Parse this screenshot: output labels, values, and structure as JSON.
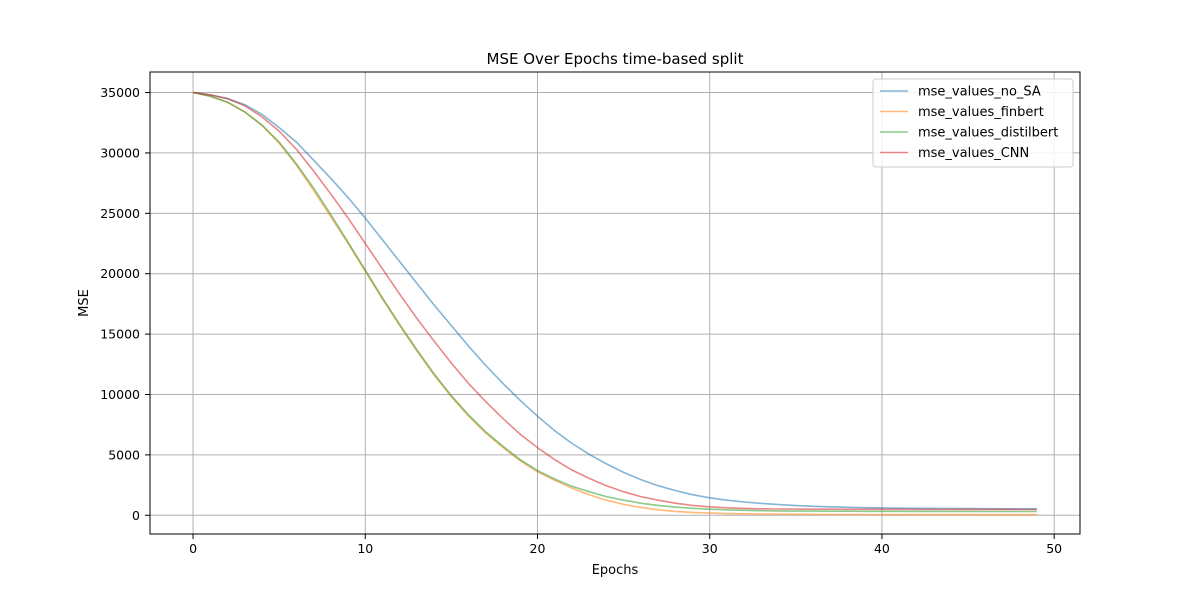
{
  "chart_data": {
    "type": "line",
    "title": "MSE Over Epochs time-based split",
    "xlabel": "Epochs",
    "ylabel": "MSE",
    "xlim": [
      -2.5,
      51.5
    ],
    "ylim": [
      -1550,
      36700
    ],
    "xticks": [
      0,
      10,
      20,
      30,
      40,
      50
    ],
    "yticks": [
      0,
      5000,
      10000,
      15000,
      20000,
      25000,
      30000,
      35000
    ],
    "grid": true,
    "legend_position": "top-right",
    "x": [
      0,
      1,
      2,
      3,
      4,
      5,
      6,
      7,
      8,
      9,
      10,
      11,
      12,
      13,
      14,
      15,
      16,
      17,
      18,
      19,
      20,
      21,
      22,
      23,
      24,
      25,
      26,
      27,
      28,
      29,
      30,
      31,
      32,
      33,
      34,
      35,
      36,
      37,
      38,
      39,
      40,
      41,
      42,
      43,
      44,
      45,
      46,
      47,
      48,
      49
    ],
    "series": [
      {
        "name": "mse_values_no_SA",
        "color": "#1f77b4",
        "values": [
          35000,
          34800,
          34500,
          34000,
          33200,
          32100,
          30900,
          29400,
          27900,
          26300,
          24600,
          22800,
          21000,
          19200,
          17400,
          15700,
          14000,
          12400,
          10900,
          9500,
          8200,
          7000,
          5950,
          5050,
          4250,
          3550,
          2950,
          2450,
          2050,
          1700,
          1450,
          1250,
          1100,
          980,
          880,
          800,
          740,
          700,
          660,
          630,
          610,
          590,
          580,
          570,
          560,
          550,
          545,
          540,
          535,
          530
        ]
      },
      {
        "name": "mse_values_finbert",
        "color": "#ff7f0e",
        "values": [
          35000,
          34700,
          34200,
          33400,
          32300,
          30800,
          29000,
          26900,
          24700,
          22500,
          20200,
          17900,
          15700,
          13600,
          11600,
          9800,
          8200,
          6800,
          5600,
          4500,
          3600,
          2900,
          2250,
          1700,
          1250,
          900,
          650,
          450,
          320,
          240,
          180,
          140,
          120,
          100,
          90,
          80,
          75,
          70,
          66,
          63,
          60,
          58,
          56,
          55,
          54,
          53,
          52,
          51,
          50,
          50
        ]
      },
      {
        "name": "mse_values_distilbert",
        "color": "#2ca02c",
        "values": [
          35000,
          34700,
          34200,
          33400,
          32300,
          30900,
          29100,
          27100,
          24900,
          22600,
          20300,
          18000,
          15800,
          13700,
          11700,
          9900,
          8300,
          6900,
          5700,
          4600,
          3700,
          3000,
          2400,
          1950,
          1550,
          1250,
          1000,
          820,
          680,
          580,
          500,
          450,
          410,
          380,
          360,
          350,
          345,
          340,
          335,
          330,
          328,
          326,
          324,
          322,
          320,
          318,
          316,
          314,
          312,
          310
        ]
      },
      {
        "name": "mse_values_CNN",
        "color": "#d62728",
        "values": [
          35000,
          34800,
          34500,
          33900,
          33000,
          31800,
          30300,
          28500,
          26600,
          24600,
          22500,
          20400,
          18300,
          16300,
          14400,
          12600,
          10900,
          9400,
          8000,
          6700,
          5600,
          4600,
          3750,
          3050,
          2450,
          1950,
          1550,
          1250,
          1000,
          820,
          700,
          620,
          570,
          540,
          520,
          510,
          505,
          500,
          498,
          496,
          494,
          492,
          490,
          488,
          486,
          485,
          484,
          483,
          482,
          480
        ]
      }
    ]
  }
}
